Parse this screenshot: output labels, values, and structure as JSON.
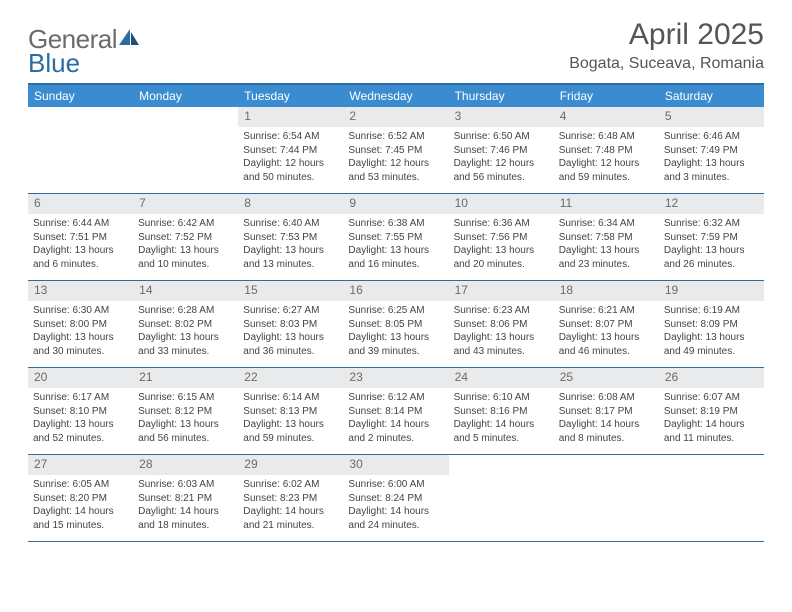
{
  "brand": {
    "general": "Genera",
    "l": "l",
    "blue": "Blue"
  },
  "title": "April 2025",
  "location": "Bogata, Suceava, Romania",
  "accent_color": "#3b8bd1",
  "rule_color": "#2b6ca3",
  "daynum_bg": "#e9eaeb",
  "dow": [
    "Sunday",
    "Monday",
    "Tuesday",
    "Wednesday",
    "Thursday",
    "Friday",
    "Saturday"
  ],
  "weeks": [
    [
      {
        "n": "",
        "sr": "",
        "ss": "",
        "dl": ""
      },
      {
        "n": "",
        "sr": "",
        "ss": "",
        "dl": ""
      },
      {
        "n": "1",
        "sr": "Sunrise: 6:54 AM",
        "ss": "Sunset: 7:44 PM",
        "dl": "Daylight: 12 hours and 50 minutes."
      },
      {
        "n": "2",
        "sr": "Sunrise: 6:52 AM",
        "ss": "Sunset: 7:45 PM",
        "dl": "Daylight: 12 hours and 53 minutes."
      },
      {
        "n": "3",
        "sr": "Sunrise: 6:50 AM",
        "ss": "Sunset: 7:46 PM",
        "dl": "Daylight: 12 hours and 56 minutes."
      },
      {
        "n": "4",
        "sr": "Sunrise: 6:48 AM",
        "ss": "Sunset: 7:48 PM",
        "dl": "Daylight: 12 hours and 59 minutes."
      },
      {
        "n": "5",
        "sr": "Sunrise: 6:46 AM",
        "ss": "Sunset: 7:49 PM",
        "dl": "Daylight: 13 hours and 3 minutes."
      }
    ],
    [
      {
        "n": "6",
        "sr": "Sunrise: 6:44 AM",
        "ss": "Sunset: 7:51 PM",
        "dl": "Daylight: 13 hours and 6 minutes."
      },
      {
        "n": "7",
        "sr": "Sunrise: 6:42 AM",
        "ss": "Sunset: 7:52 PM",
        "dl": "Daylight: 13 hours and 10 minutes."
      },
      {
        "n": "8",
        "sr": "Sunrise: 6:40 AM",
        "ss": "Sunset: 7:53 PM",
        "dl": "Daylight: 13 hours and 13 minutes."
      },
      {
        "n": "9",
        "sr": "Sunrise: 6:38 AM",
        "ss": "Sunset: 7:55 PM",
        "dl": "Daylight: 13 hours and 16 minutes."
      },
      {
        "n": "10",
        "sr": "Sunrise: 6:36 AM",
        "ss": "Sunset: 7:56 PM",
        "dl": "Daylight: 13 hours and 20 minutes."
      },
      {
        "n": "11",
        "sr": "Sunrise: 6:34 AM",
        "ss": "Sunset: 7:58 PM",
        "dl": "Daylight: 13 hours and 23 minutes."
      },
      {
        "n": "12",
        "sr": "Sunrise: 6:32 AM",
        "ss": "Sunset: 7:59 PM",
        "dl": "Daylight: 13 hours and 26 minutes."
      }
    ],
    [
      {
        "n": "13",
        "sr": "Sunrise: 6:30 AM",
        "ss": "Sunset: 8:00 PM",
        "dl": "Daylight: 13 hours and 30 minutes."
      },
      {
        "n": "14",
        "sr": "Sunrise: 6:28 AM",
        "ss": "Sunset: 8:02 PM",
        "dl": "Daylight: 13 hours and 33 minutes."
      },
      {
        "n": "15",
        "sr": "Sunrise: 6:27 AM",
        "ss": "Sunset: 8:03 PM",
        "dl": "Daylight: 13 hours and 36 minutes."
      },
      {
        "n": "16",
        "sr": "Sunrise: 6:25 AM",
        "ss": "Sunset: 8:05 PM",
        "dl": "Daylight: 13 hours and 39 minutes."
      },
      {
        "n": "17",
        "sr": "Sunrise: 6:23 AM",
        "ss": "Sunset: 8:06 PM",
        "dl": "Daylight: 13 hours and 43 minutes."
      },
      {
        "n": "18",
        "sr": "Sunrise: 6:21 AM",
        "ss": "Sunset: 8:07 PM",
        "dl": "Daylight: 13 hours and 46 minutes."
      },
      {
        "n": "19",
        "sr": "Sunrise: 6:19 AM",
        "ss": "Sunset: 8:09 PM",
        "dl": "Daylight: 13 hours and 49 minutes."
      }
    ],
    [
      {
        "n": "20",
        "sr": "Sunrise: 6:17 AM",
        "ss": "Sunset: 8:10 PM",
        "dl": "Daylight: 13 hours and 52 minutes."
      },
      {
        "n": "21",
        "sr": "Sunrise: 6:15 AM",
        "ss": "Sunset: 8:12 PM",
        "dl": "Daylight: 13 hours and 56 minutes."
      },
      {
        "n": "22",
        "sr": "Sunrise: 6:14 AM",
        "ss": "Sunset: 8:13 PM",
        "dl": "Daylight: 13 hours and 59 minutes."
      },
      {
        "n": "23",
        "sr": "Sunrise: 6:12 AM",
        "ss": "Sunset: 8:14 PM",
        "dl": "Daylight: 14 hours and 2 minutes."
      },
      {
        "n": "24",
        "sr": "Sunrise: 6:10 AM",
        "ss": "Sunset: 8:16 PM",
        "dl": "Daylight: 14 hours and 5 minutes."
      },
      {
        "n": "25",
        "sr": "Sunrise: 6:08 AM",
        "ss": "Sunset: 8:17 PM",
        "dl": "Daylight: 14 hours and 8 minutes."
      },
      {
        "n": "26",
        "sr": "Sunrise: 6:07 AM",
        "ss": "Sunset: 8:19 PM",
        "dl": "Daylight: 14 hours and 11 minutes."
      }
    ],
    [
      {
        "n": "27",
        "sr": "Sunrise: 6:05 AM",
        "ss": "Sunset: 8:20 PM",
        "dl": "Daylight: 14 hours and 15 minutes."
      },
      {
        "n": "28",
        "sr": "Sunrise: 6:03 AM",
        "ss": "Sunset: 8:21 PM",
        "dl": "Daylight: 14 hours and 18 minutes."
      },
      {
        "n": "29",
        "sr": "Sunrise: 6:02 AM",
        "ss": "Sunset: 8:23 PM",
        "dl": "Daylight: 14 hours and 21 minutes."
      },
      {
        "n": "30",
        "sr": "Sunrise: 6:00 AM",
        "ss": "Sunset: 8:24 PM",
        "dl": "Daylight: 14 hours and 24 minutes."
      },
      {
        "n": "",
        "sr": "",
        "ss": "",
        "dl": ""
      },
      {
        "n": "",
        "sr": "",
        "ss": "",
        "dl": ""
      },
      {
        "n": "",
        "sr": "",
        "ss": "",
        "dl": ""
      }
    ]
  ]
}
